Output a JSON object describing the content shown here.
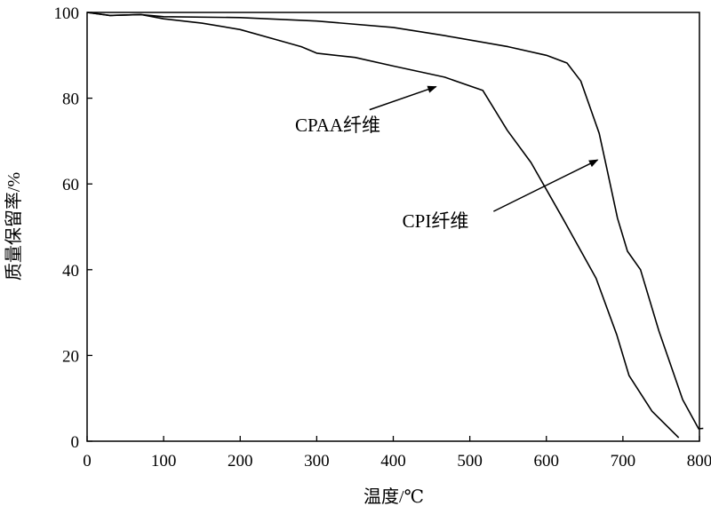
{
  "chart_data": {
    "type": "line",
    "title": "",
    "xlabel": "温度/℃",
    "ylabel": "质量保留率/%",
    "xlim": [
      0,
      800
    ],
    "ylim": [
      0,
      100
    ],
    "xticks": [
      0,
      100,
      200,
      300,
      400,
      500,
      600,
      700,
      800
    ],
    "yticks": [
      0,
      20,
      40,
      60,
      80,
      100
    ],
    "grid": false,
    "legend": "none",
    "series": [
      {
        "name": "CPI纤维",
        "x": [
          0,
          30,
          70,
          100,
          200,
          300,
          400,
          467,
          550,
          600,
          627,
          645,
          669,
          679,
          693,
          706,
          723,
          747,
          778,
          799,
          805
        ],
        "y": [
          100,
          99.3,
          99.5,
          99,
          98.8,
          98,
          96.5,
          94.6,
          92,
          90,
          88.2,
          84,
          71.8,
          63.6,
          52,
          44.3,
          40,
          25.7,
          9.7,
          2.9,
          3
        ]
      },
      {
        "name": "CPAA纤维",
        "x": [
          0,
          30,
          70,
          100,
          150,
          200,
          250,
          280,
          300,
          350,
          400,
          467,
          517,
          549,
          580,
          622,
          665,
          692,
          708,
          738,
          773
        ],
        "y": [
          100,
          99.3,
          99.5,
          98.5,
          97.5,
          96,
          93.5,
          92,
          90.5,
          89.5,
          87.5,
          84.9,
          81.8,
          72.5,
          65,
          51.8,
          38,
          24.8,
          15.3,
          7,
          0.8
        ]
      }
    ],
    "annotations": [
      {
        "text": "CPAA纤维",
        "arrow_from": [
          369,
          77.3
        ],
        "arrow_to": [
          456,
          82.7
        ]
      },
      {
        "text": "CPI纤维",
        "arrow_from": [
          531,
          53.6
        ],
        "arrow_to": [
          667,
          65.6
        ]
      }
    ]
  }
}
